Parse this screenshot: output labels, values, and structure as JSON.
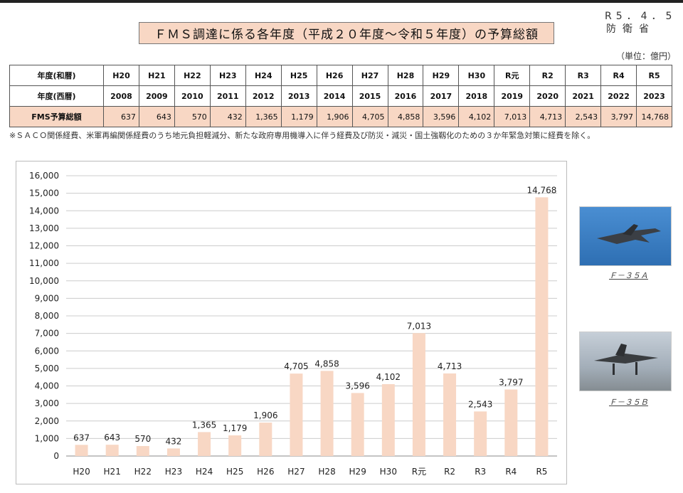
{
  "header": {
    "date": "R5．4．5",
    "org": "防衛省",
    "title": "ＦＭＳ調達に係る各年度（平成２０年度〜令和５年度）の予算総額",
    "unit": "（単位：億円）"
  },
  "table": {
    "row_era_label": "年度(和暦)",
    "row_year_label": "年度(西暦)",
    "row_budget_label": "FMS予算総額",
    "era": [
      "H20",
      "H21",
      "H22",
      "H23",
      "H24",
      "H25",
      "H26",
      "H27",
      "H28",
      "H29",
      "H30",
      "R元",
      "R2",
      "R3",
      "R4",
      "R5"
    ],
    "year": [
      "2008",
      "2009",
      "2010",
      "2011",
      "2012",
      "2013",
      "2014",
      "2015",
      "2016",
      "2017",
      "2018",
      "2019",
      "2020",
      "2021",
      "2022",
      "2023"
    ],
    "budget": [
      "637",
      "643",
      "570",
      "432",
      "1,365",
      "1,179",
      "1,906",
      "4,705",
      "4,858",
      "3,596",
      "4,102",
      "7,013",
      "4,713",
      "2,543",
      "3,797",
      "14,768"
    ]
  },
  "note": "※ＳＡＣＯ関係経費、米軍再編関係経費のうち地元負担軽減分、新たな政府専用機導入に伴う経費及び防災・減災・国土強靱化のための３か年緊急対策に経費を除く。",
  "colors": {
    "bar": "#f8d7c4",
    "accent": "#f8d7c4",
    "grid": "#cccccc"
  },
  "chart_data": {
    "type": "bar",
    "categories": [
      "H20",
      "H21",
      "H22",
      "H23",
      "H24",
      "H25",
      "H26",
      "H27",
      "H28",
      "H29",
      "H30",
      "R元",
      "R2",
      "R3",
      "R4",
      "R5"
    ],
    "values": [
      637,
      643,
      570,
      432,
      1365,
      1179,
      1906,
      4705,
      4858,
      3596,
      4102,
      7013,
      4713,
      2543,
      3797,
      14768
    ],
    "value_labels": [
      "637",
      "643",
      "570",
      "432",
      "1,365",
      "1,179",
      "1,906",
      "4,705",
      "4,858",
      "3,596",
      "4,102",
      "7,013",
      "4,713",
      "2,543",
      "3,797",
      "14,768"
    ],
    "yticks": [
      "0",
      "1,000",
      "2,000",
      "3,000",
      "4,000",
      "5,000",
      "6,000",
      "7,000",
      "8,000",
      "9,000",
      "10,000",
      "11,000",
      "12,000",
      "13,000",
      "14,000",
      "15,000",
      "16,000"
    ],
    "ylim": [
      0,
      16000
    ],
    "grid": true,
    "title": "",
    "xlabel": "",
    "ylabel": ""
  },
  "photos": [
    {
      "caption": "Ｆ－３５Ａ"
    },
    {
      "caption": "Ｆ－３５Ｂ"
    }
  ]
}
